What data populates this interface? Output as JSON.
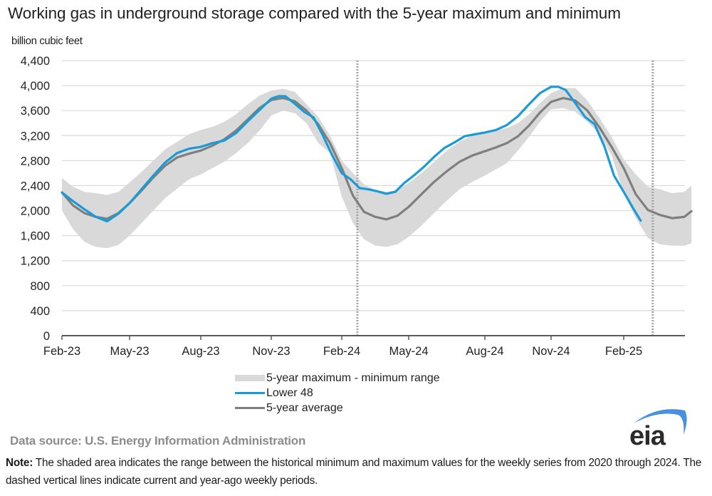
{
  "chart_data": {
    "type": "line",
    "title": "Working gas in underground  storage compared with the 5-year maximum and minimum",
    "ylabel": "billion cubic feet",
    "xlabel": "",
    "ylim": [
      0,
      4400
    ],
    "yticks": [
      0,
      400,
      800,
      1200,
      1600,
      2000,
      2400,
      2800,
      3200,
      3600,
      4000,
      4400
    ],
    "ytick_labels": [
      "0",
      "400",
      "800",
      "1,200",
      "1,600",
      "2,000",
      "2,400",
      "2,800",
      "3,200",
      "3,600",
      "4,000",
      "4,400"
    ],
    "x_unit": "months since Feb-23",
    "xlim": [
      0,
      26.8
    ],
    "xticks": [
      0,
      3,
      6,
      9,
      12,
      15,
      18,
      21,
      24
    ],
    "xtick_labels": [
      "Feb-23",
      "May-23",
      "Aug-23",
      "Nov-23",
      "Feb-24",
      "May-24",
      "Aug-24",
      "Nov-24",
      "Feb-25"
    ],
    "grid": true,
    "legend_position": "bottom-center",
    "dashed_vertical_lines": [
      12.7,
      25.2
    ],
    "series": [
      {
        "name": "5-year maximum - minimum range",
        "kind": "band",
        "color": "#d9d9d9",
        "x": [
          0,
          0.5,
          1,
          1.5,
          2,
          2.5,
          3,
          3.5,
          4,
          4.5,
          5,
          5.5,
          6,
          6.5,
          7,
          7.5,
          8,
          8.5,
          9,
          9.5,
          10,
          10.5,
          11,
          11.5,
          12,
          12.5,
          13,
          13.5,
          14,
          14.5,
          15,
          15.5,
          16,
          16.5,
          17,
          17.5,
          18,
          18.5,
          19,
          19.5,
          20,
          20.5,
          21,
          21.5,
          22,
          22.5,
          23,
          23.5,
          24,
          24.5,
          25,
          25.5,
          26,
          26.5,
          26.8
        ],
        "max": [
          2520,
          2380,
          2300,
          2280,
          2250,
          2300,
          2450,
          2620,
          2800,
          2980,
          3100,
          3220,
          3290,
          3340,
          3420,
          3540,
          3700,
          3840,
          3920,
          3950,
          3900,
          3700,
          3500,
          3200,
          2800,
          2600,
          2420,
          2330,
          2300,
          2330,
          2440,
          2600,
          2780,
          2960,
          3100,
          3200,
          3260,
          3290,
          3320,
          3400,
          3540,
          3720,
          3880,
          3960,
          3960,
          3760,
          3480,
          3180,
          2820,
          2580,
          2380,
          2340,
          2280,
          2300,
          2400
        ],
        "min": [
          2000,
          1700,
          1500,
          1420,
          1400,
          1450,
          1600,
          1800,
          2000,
          2200,
          2350,
          2500,
          2580,
          2680,
          2780,
          2920,
          3080,
          3280,
          3520,
          3600,
          3560,
          3400,
          3080,
          2920,
          2220,
          1800,
          1540,
          1440,
          1420,
          1460,
          1580,
          1760,
          1960,
          2160,
          2340,
          2460,
          2560,
          2660,
          2760,
          2960,
          3180,
          3420,
          3620,
          3640,
          3580,
          3420,
          3220,
          2880,
          2280,
          1880,
          1560,
          1460,
          1440,
          1440,
          1480
        ]
      },
      {
        "name": "Lower 48",
        "kind": "line",
        "color": "#1a9bd7",
        "x": [
          0,
          0.5,
          1,
          1.5,
          2,
          2.5,
          3,
          3.5,
          4,
          4.5,
          5,
          5.5,
          6,
          6.5,
          7,
          7.5,
          8,
          8.5,
          9,
          9.3,
          9.6,
          10,
          10.4,
          10.8,
          11.2,
          11.6,
          12,
          12.4,
          12.8,
          13.2,
          13.6,
          14,
          14.4,
          14.8,
          15.2,
          15.6,
          16,
          16.4,
          16.8,
          17.2,
          17.6,
          18,
          18.5,
          19,
          19.5,
          20,
          20.5,
          21,
          21.3,
          21.6,
          22,
          22.4,
          22.8,
          23.2,
          23.6,
          24,
          24.4,
          24.7
        ],
        "values": [
          2290,
          2150,
          2020,
          1900,
          1830,
          1950,
          2120,
          2340,
          2560,
          2770,
          2920,
          2990,
          3020,
          3080,
          3120,
          3240,
          3430,
          3610,
          3790,
          3830,
          3830,
          3710,
          3580,
          3490,
          3200,
          2880,
          2600,
          2500,
          2360,
          2340,
          2310,
          2270,
          2300,
          2440,
          2560,
          2700,
          2860,
          3000,
          3090,
          3190,
          3220,
          3250,
          3290,
          3370,
          3510,
          3700,
          3880,
          3980,
          3980,
          3930,
          3720,
          3500,
          3380,
          3030,
          2560,
          2300,
          2030,
          1840
        ]
      },
      {
        "name": "5-year average",
        "kind": "line",
        "color": "#7f7f7f",
        "x": [
          0,
          0.5,
          1,
          1.5,
          2,
          2.5,
          3,
          3.5,
          4,
          4.5,
          5,
          5.5,
          6,
          6.5,
          7,
          7.5,
          8,
          8.5,
          9,
          9.5,
          10,
          10.5,
          11,
          11.5,
          12,
          12.5,
          13,
          13.5,
          14,
          14.5,
          15,
          15.5,
          16,
          16.5,
          17,
          17.5,
          18,
          18.5,
          19,
          19.5,
          20,
          20.5,
          21,
          21.5,
          22,
          22.5,
          23,
          23.5,
          24,
          24.5,
          25,
          25.5,
          26,
          26.5,
          26.8
        ],
        "values": [
          2290,
          2080,
          1960,
          1900,
          1870,
          1960,
          2120,
          2320,
          2530,
          2720,
          2850,
          2910,
          2960,
          3040,
          3140,
          3280,
          3460,
          3640,
          3770,
          3800,
          3750,
          3600,
          3380,
          3080,
          2680,
          2240,
          1980,
          1900,
          1860,
          1920,
          2060,
          2260,
          2460,
          2630,
          2780,
          2880,
          2950,
          3010,
          3080,
          3190,
          3360,
          3570,
          3740,
          3800,
          3760,
          3600,
          3330,
          3020,
          2680,
          2260,
          2010,
          1930,
          1880,
          1900,
          1990
        ]
      }
    ]
  },
  "legend": {
    "items": [
      {
        "label": "5-year maximum - minimum range",
        "swatch": "band"
      },
      {
        "label": "Lower 48",
        "swatch": "line-blue"
      },
      {
        "label": "5-year average",
        "swatch": "line-gray"
      }
    ]
  },
  "footer": {
    "source": "Data source:  U.S. Energy Information Administration",
    "note_label": "Note:",
    "note_text": " The shaded area indicates the range between the historical minimum and maximum values for the weekly series from 2020 through 2024. The dashed vertical lines indicate current and year-ago weekly periods.",
    "logo_text": "eia"
  },
  "colors": {
    "band": "#d9d9d9",
    "lower48": "#1a9bd7",
    "average": "#7f7f7f",
    "grid": "#d9d9d9",
    "axis": "#595959",
    "logo_arc": "#4a90e2"
  }
}
